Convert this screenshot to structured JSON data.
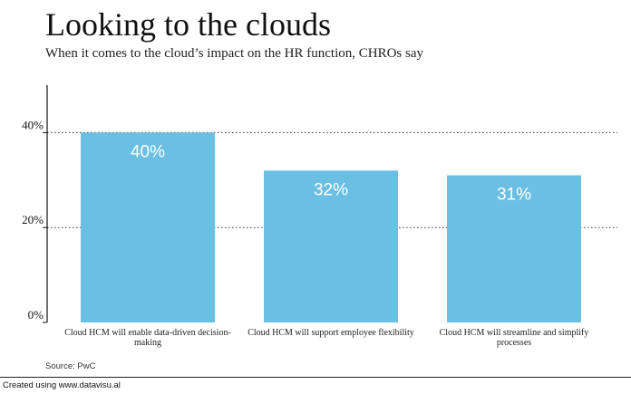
{
  "title": "Looking to the clouds",
  "subtitle": "When it comes to the cloud’s impact on the HR function, CHROs say",
  "source": "Source: PwC",
  "footer": "Created using www.datavisu.al",
  "colors": {
    "bar": "#6ABFE3",
    "bar_label": "#ffffff",
    "axis": "#111111",
    "grid": "#333333"
  },
  "chart_data": {
    "type": "bar",
    "categories": [
      "Cloud HCM will enable data-driven decision-making",
      "Cloud HCM will support employee flexibility",
      "Cloud HCM will streamline and simplify processes"
    ],
    "values": [
      40,
      32,
      31
    ],
    "value_labels": [
      "40%",
      "32%",
      "31%"
    ],
    "ylim": [
      0,
      50
    ],
    "yticks": [
      0,
      20,
      40
    ],
    "ytick_labels": [
      "0%",
      "20%",
      "40%"
    ],
    "grid": "dotted horizontal at ticks"
  }
}
